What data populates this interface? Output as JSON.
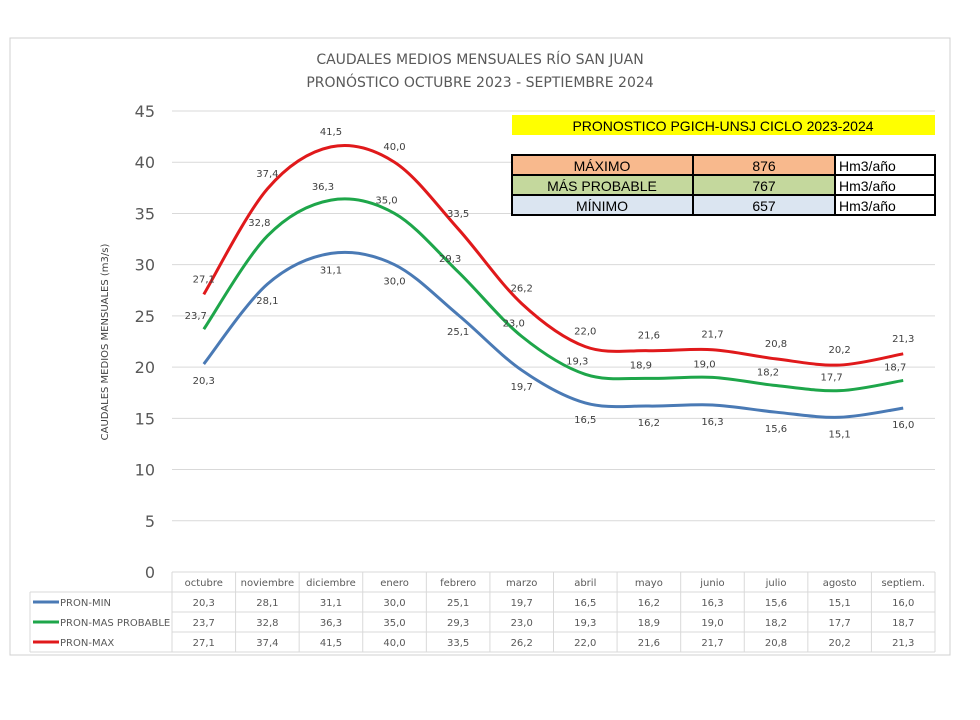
{
  "chart_data": {
    "type": "line",
    "title": "CAUDALES MEDIOS MENSUALES RÍO SAN JUAN",
    "subtitle": "PRONÓSTICO OCTUBRE 2023 - SEPTIEMBRE 2024",
    "ylabel": "CAUDALES MEDIOS MENSUALES (m3/s)",
    "xlabel": "",
    "ylim": [
      0,
      45
    ],
    "yticks": [
      "0",
      "5",
      "10",
      "15",
      "20",
      "25",
      "30",
      "35",
      "40",
      "45"
    ],
    "grid": true,
    "legend": "bottom data table",
    "categories": [
      "octubre",
      "noviembre",
      "diciembre",
      "enero",
      "febrero",
      "marzo",
      "abril",
      "mayo",
      "junio",
      "julio",
      "agosto",
      "septiem."
    ],
    "series": [
      {
        "name": "PRON-MIN",
        "color": "#4a7ab5",
        "labels": [
          "20,3",
          "28,1",
          "31,1",
          "30,0",
          "25,1",
          "19,7",
          "16,5",
          "16,2",
          "16,3",
          "15,6",
          "15,1",
          "16,0"
        ],
        "values": [
          20.3,
          28.1,
          31.1,
          30.0,
          25.1,
          19.7,
          16.5,
          16.2,
          16.3,
          15.6,
          15.1,
          16.0
        ]
      },
      {
        "name": "PRON-MAS PROBABLE",
        "color": "#1ea64a",
        "labels": [
          "23,7",
          "32,8",
          "36,3",
          "35,0",
          "29,3",
          "23,0",
          "19,3",
          "18,9",
          "19,0",
          "18,2",
          "17,7",
          "18,7"
        ],
        "values": [
          23.7,
          32.8,
          36.3,
          35.0,
          29.3,
          23.0,
          19.3,
          18.9,
          19.0,
          18.2,
          17.7,
          18.7
        ]
      },
      {
        "name": "PRON-MAX",
        "color": "#e0191b",
        "labels": [
          "27,1",
          "37,4",
          "41,5",
          "40,0",
          "33,5",
          "26,2",
          "22,0",
          "21,6",
          "21,7",
          "20,8",
          "20,2",
          "21,3"
        ],
        "values": [
          27.1,
          37.4,
          41.5,
          40.0,
          33.5,
          26.2,
          22.0,
          21.6,
          21.7,
          20.8,
          20.2,
          21.3
        ]
      }
    ]
  },
  "info_box": {
    "title": "PRONOSTICO PGICH-UNSJ CICLO 2023-2024",
    "rows": [
      {
        "label": "MÁXIMO",
        "value": "876",
        "unit": "Hm3/año",
        "color": "#f8b98d"
      },
      {
        "label": "MÁS PROBABLE",
        "value": "767",
        "unit": "Hm3/año",
        "color": "#c4d89d"
      },
      {
        "label": "MÍNIMO",
        "value": "657",
        "unit": "Hm3/año",
        "color": "#dbe5f1"
      }
    ]
  }
}
